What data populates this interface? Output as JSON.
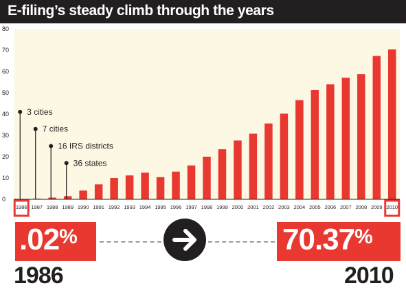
{
  "header": {
    "title": "E-filing’s steady climb through the years"
  },
  "chart_data": {
    "type": "bar",
    "categories": [
      "1986",
      "1987",
      "1988",
      "1989",
      "1990",
      "1991",
      "1992",
      "1993",
      "1994",
      "1995",
      "1996",
      "1997",
      "1998",
      "1999",
      "2000",
      "2001",
      "2002",
      "2003",
      "2004",
      "2005",
      "2006",
      "2007",
      "2008",
      "2009",
      "2010"
    ],
    "values": [
      0.02,
      0.3,
      0.8,
      1.5,
      4.1,
      7.0,
      10.0,
      11.2,
      12.5,
      10.4,
      13.0,
      15.9,
      20.0,
      23.5,
      27.6,
      30.8,
      35.6,
      40.2,
      46.5,
      51.3,
      54.0,
      57.1,
      58.7,
      67.3,
      70.37
    ],
    "ylim": [
      0,
      80
    ],
    "yticks": [
      0,
      10,
      20,
      30,
      40,
      50,
      60,
      70,
      80
    ],
    "xlabel": "",
    "ylabel": "",
    "grid": false,
    "bar_color": "#e8382f",
    "plot_background": "#fdf8e4",
    "annotations": [
      {
        "category": "1986",
        "level": 41,
        "text": "3 cities"
      },
      {
        "category": "1987",
        "level": 33,
        "text": "7 cities"
      },
      {
        "category": "1988",
        "level": 25,
        "text": "16 IRS districts"
      },
      {
        "category": "1989",
        "level": 17,
        "text": "36 states"
      }
    ]
  },
  "summary": {
    "start_value": ".02",
    "end_value": "70.37",
    "percent_sign": "%",
    "start_year": "1986",
    "end_year": "2010",
    "arrow_icon": "arrow-right-icon"
  },
  "colors": {
    "accent": "#e8382f",
    "dark": "#231f20",
    "title_text": "#ffffff"
  }
}
